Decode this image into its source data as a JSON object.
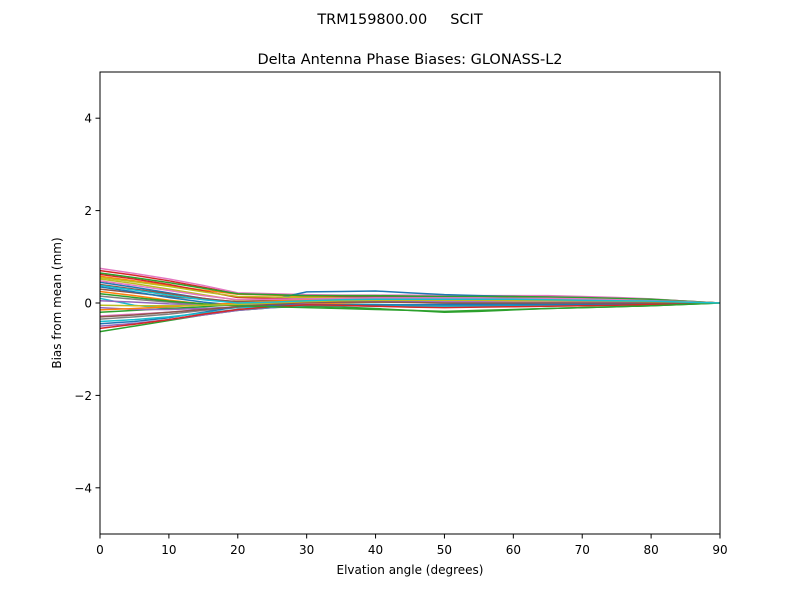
{
  "chart_data": {
    "type": "line",
    "suptitle": "TRM159800.00     SCIT",
    "title": "Delta Antenna Phase Biases: GLONASS-L2",
    "xlabel": "Elvation angle (degrees)",
    "ylabel": "Bias from mean (mm)",
    "xlim": [
      0,
      90
    ],
    "ylim": [
      -5,
      5
    ],
    "xticks": [
      0,
      10,
      20,
      30,
      40,
      50,
      60,
      70,
      80,
      90
    ],
    "yticks": [
      -4,
      -2,
      0,
      2,
      4
    ],
    "xtick_labels": [
      "0",
      "10",
      "20",
      "30",
      "40",
      "50",
      "60",
      "70",
      "80",
      "90"
    ],
    "ytick_labels": [
      "−4",
      "−2",
      "0",
      "2",
      "4"
    ],
    "grid": false,
    "legend": false,
    "x": [
      0,
      5,
      10,
      15,
      20,
      25,
      30,
      35,
      40,
      45,
      50,
      55,
      60,
      65,
      70,
      75,
      80,
      85,
      90
    ],
    "series": [
      {
        "color": "#1f77b4",
        "values": [
          0.45,
          0.34,
          0.22,
          0.1,
          0.0,
          -0.04,
          -0.05,
          -0.06,
          -0.05,
          -0.04,
          -0.03,
          -0.02,
          -0.01,
          0.0,
          0.0,
          0.0,
          0.0,
          0.0,
          0.0
        ]
      },
      {
        "color": "#ff7f0e",
        "values": [
          0.58,
          0.48,
          0.38,
          0.28,
          0.19,
          0.17,
          0.14,
          0.13,
          0.12,
          0.12,
          0.11,
          0.11,
          0.11,
          0.11,
          0.1,
          0.09,
          0.07,
          0.03,
          0.0
        ]
      },
      {
        "color": "#2ca02c",
        "values": [
          -0.62,
          -0.5,
          -0.38,
          -0.26,
          -0.16,
          -0.1,
          -0.07,
          -0.09,
          -0.12,
          -0.16,
          -0.2,
          -0.18,
          -0.15,
          -0.12,
          -0.1,
          -0.08,
          -0.06,
          -0.03,
          0.0
        ]
      },
      {
        "color": "#d62728",
        "values": [
          0.7,
          0.6,
          0.48,
          0.34,
          0.2,
          0.18,
          0.16,
          0.15,
          0.15,
          0.16,
          0.15,
          0.15,
          0.15,
          0.14,
          0.12,
          0.1,
          0.08,
          0.04,
          0.0
        ]
      },
      {
        "color": "#9467bd",
        "values": [
          -0.5,
          -0.44,
          -0.36,
          -0.26,
          -0.16,
          -0.1,
          -0.05,
          -0.06,
          -0.07,
          -0.08,
          -0.09,
          -0.08,
          -0.07,
          -0.06,
          -0.05,
          -0.04,
          -0.03,
          -0.01,
          0.0
        ]
      },
      {
        "color": "#8c564b",
        "values": [
          0.3,
          0.22,
          0.14,
          0.08,
          0.03,
          0.05,
          0.08,
          0.09,
          0.1,
          0.1,
          0.1,
          0.09,
          0.08,
          0.07,
          0.06,
          0.05,
          0.04,
          0.02,
          0.0
        ]
      },
      {
        "color": "#e377c2",
        "values": [
          0.75,
          0.64,
          0.52,
          0.38,
          0.22,
          0.2,
          0.18,
          0.17,
          0.17,
          0.17,
          0.16,
          0.16,
          0.16,
          0.16,
          0.14,
          0.12,
          0.09,
          0.04,
          0.0
        ]
      },
      {
        "color": "#7f7f7f",
        "values": [
          -0.35,
          -0.3,
          -0.24,
          -0.16,
          -0.1,
          -0.06,
          -0.04,
          -0.05,
          -0.06,
          -0.07,
          -0.08,
          -0.07,
          -0.06,
          -0.05,
          -0.04,
          -0.03,
          -0.02,
          -0.01,
          0.0
        ]
      },
      {
        "color": "#bcbd22",
        "values": [
          0.52,
          0.42,
          0.3,
          0.18,
          0.06,
          0.04,
          0.02,
          0.02,
          0.02,
          0.03,
          0.04,
          0.04,
          0.04,
          0.04,
          0.04,
          0.03,
          0.02,
          0.01,
          0.0
        ]
      },
      {
        "color": "#17becf",
        "values": [
          0.1,
          -0.05,
          -0.12,
          -0.12,
          -0.1,
          -0.07,
          -0.04,
          -0.03,
          -0.03,
          -0.04,
          -0.05,
          -0.05,
          -0.04,
          -0.04,
          -0.03,
          -0.02,
          -0.02,
          -0.01,
          0.0
        ]
      },
      {
        "color": "#1f77b4",
        "values": [
          -0.45,
          -0.4,
          -0.32,
          -0.2,
          -0.08,
          0.08,
          0.24,
          0.25,
          0.26,
          0.22,
          0.18,
          0.16,
          0.14,
          0.12,
          0.1,
          0.08,
          0.06,
          0.03,
          0.0
        ]
      },
      {
        "color": "#ff7f0e",
        "values": [
          0.25,
          0.16,
          0.06,
          -0.02,
          -0.06,
          -0.05,
          -0.02,
          0.0,
          0.02,
          0.03,
          0.04,
          0.04,
          0.04,
          0.04,
          0.04,
          0.03,
          0.02,
          0.01,
          0.0
        ]
      },
      {
        "color": "#2ca02c",
        "values": [
          -0.2,
          -0.16,
          -0.12,
          -0.08,
          -0.03,
          0.02,
          0.05,
          0.07,
          0.08,
          0.08,
          0.08,
          0.08,
          0.07,
          0.07,
          0.06,
          0.05,
          0.04,
          0.02,
          0.0
        ]
      },
      {
        "color": "#d62728",
        "values": [
          0.62,
          0.52,
          0.4,
          0.26,
          0.12,
          0.1,
          0.08,
          0.08,
          0.08,
          0.09,
          0.1,
          0.1,
          0.1,
          0.1,
          0.09,
          0.08,
          0.06,
          0.03,
          0.0
        ]
      },
      {
        "color": "#9467bd",
        "values": [
          -0.1,
          -0.14,
          -0.14,
          -0.12,
          -0.08,
          -0.04,
          0.0,
          0.02,
          0.03,
          0.03,
          0.03,
          0.03,
          0.03,
          0.03,
          0.03,
          0.02,
          0.02,
          0.01,
          0.0
        ]
      },
      {
        "color": "#8c564b",
        "values": [
          0.4,
          0.3,
          0.2,
          0.1,
          0.02,
          0.06,
          0.1,
          0.12,
          0.13,
          0.13,
          0.13,
          0.13,
          0.12,
          0.11,
          0.1,
          0.08,
          0.06,
          0.03,
          0.0
        ]
      },
      {
        "color": "#e377c2",
        "values": [
          -0.28,
          -0.24,
          -0.2,
          -0.14,
          -0.08,
          -0.02,
          0.03,
          0.05,
          0.06,
          0.05,
          0.04,
          0.04,
          0.04,
          0.04,
          0.03,
          0.03,
          0.02,
          0.01,
          0.0
        ]
      },
      {
        "color": "#7f7f7f",
        "values": [
          0.15,
          0.08,
          0.02,
          -0.03,
          -0.05,
          -0.02,
          0.02,
          0.04,
          0.05,
          0.05,
          0.05,
          0.05,
          0.05,
          0.05,
          0.04,
          0.04,
          0.03,
          0.01,
          0.0
        ]
      },
      {
        "color": "#bcbd22",
        "values": [
          0.55,
          0.46,
          0.36,
          0.24,
          0.14,
          0.13,
          0.12,
          0.11,
          0.1,
          0.1,
          0.1,
          0.1,
          0.1,
          0.1,
          0.09,
          0.08,
          0.06,
          0.03,
          0.0
        ]
      },
      {
        "color": "#17becf",
        "values": [
          -0.4,
          -0.36,
          -0.3,
          -0.22,
          -0.14,
          -0.09,
          -0.05,
          -0.05,
          -0.06,
          -0.07,
          -0.08,
          -0.08,
          -0.07,
          -0.06,
          -0.05,
          -0.04,
          -0.03,
          -0.01,
          0.0
        ]
      },
      {
        "color": "#1f77b4",
        "values": [
          0.35,
          0.24,
          0.12,
          0.02,
          -0.05,
          -0.05,
          -0.04,
          -0.04,
          -0.04,
          -0.04,
          -0.04,
          -0.04,
          -0.04,
          -0.03,
          -0.03,
          -0.02,
          -0.02,
          -0.01,
          0.0
        ]
      },
      {
        "color": "#ff7f0e",
        "values": [
          -0.15,
          -0.12,
          -0.08,
          -0.04,
          0.0,
          0.04,
          0.07,
          0.08,
          0.09,
          0.09,
          0.09,
          0.09,
          0.08,
          0.08,
          0.07,
          0.06,
          0.04,
          0.02,
          0.0
        ]
      },
      {
        "color": "#2ca02c",
        "values": [
          0.65,
          0.55,
          0.44,
          0.32,
          0.2,
          0.18,
          0.16,
          0.16,
          0.16,
          0.15,
          0.14,
          0.14,
          0.14,
          0.13,
          0.12,
          0.1,
          0.08,
          0.04,
          0.0
        ]
      },
      {
        "color": "#d62728",
        "values": [
          -0.55,
          -0.46,
          -0.36,
          -0.24,
          -0.14,
          -0.08,
          -0.04,
          -0.05,
          -0.07,
          -0.09,
          -0.1,
          -0.09,
          -0.08,
          -0.07,
          -0.06,
          -0.05,
          -0.03,
          -0.02,
          0.0
        ]
      },
      {
        "color": "#9467bd",
        "values": [
          0.05,
          0.02,
          -0.02,
          -0.04,
          -0.04,
          -0.01,
          0.02,
          0.04,
          0.05,
          0.05,
          0.05,
          0.05,
          0.05,
          0.05,
          0.04,
          0.04,
          0.03,
          0.01,
          0.0
        ]
      },
      {
        "color": "#8c564b",
        "values": [
          -0.3,
          -0.26,
          -0.2,
          -0.14,
          -0.08,
          -0.03,
          0.01,
          0.02,
          0.02,
          0.01,
          0.0,
          0.0,
          0.0,
          0.0,
          0.0,
          0.0,
          0.0,
          0.0,
          0.0
        ]
      },
      {
        "color": "#e377c2",
        "values": [
          0.48,
          0.38,
          0.27,
          0.16,
          0.07,
          0.08,
          0.09,
          0.1,
          0.11,
          0.11,
          0.11,
          0.11,
          0.1,
          0.1,
          0.09,
          0.07,
          0.05,
          0.03,
          0.0
        ]
      },
      {
        "color": "#2ca02c",
        "values": [
          0.2,
          0.12,
          0.04,
          -0.02,
          -0.06,
          -0.08,
          -0.1,
          -0.12,
          -0.14,
          -0.16,
          -0.18,
          -0.16,
          -0.14,
          -0.12,
          -0.1,
          -0.08,
          -0.06,
          -0.03,
          0.0
        ]
      },
      {
        "color": "#bcbd22",
        "values": [
          -0.05,
          -0.06,
          -0.06,
          -0.05,
          -0.03,
          0.0,
          0.03,
          0.05,
          0.06,
          0.06,
          0.06,
          0.06,
          0.05,
          0.05,
          0.05,
          0.04,
          0.03,
          0.02,
          0.0
        ]
      },
      {
        "color": "#17becf",
        "values": [
          0.38,
          0.28,
          0.17,
          0.07,
          0.0,
          0.02,
          0.05,
          0.07,
          0.08,
          0.08,
          0.08,
          0.08,
          0.08,
          0.07,
          0.06,
          0.05,
          0.04,
          0.02,
          0.0
        ]
      }
    ]
  }
}
